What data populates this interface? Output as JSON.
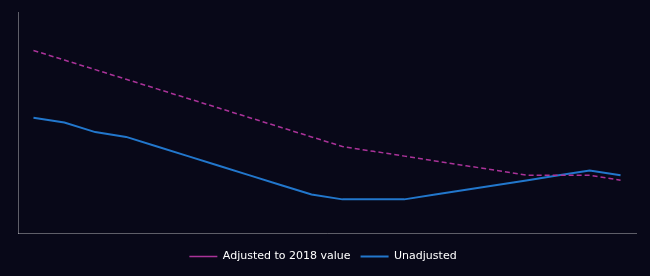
{
  "chart_data": {
    "type": "line",
    "x": [
      0,
      1,
      2,
      3,
      4,
      5,
      6,
      7,
      8,
      9,
      10,
      11,
      12,
      13,
      14,
      15,
      16,
      17,
      18,
      19
    ],
    "series": [
      {
        "name": "Adjusted to 2018 value",
        "color": "#aa3399",
        "line_style": "dashed",
        "values": [
          88,
          86,
          84,
          82,
          80,
          78,
          76,
          74,
          72,
          70,
          68,
          67,
          66,
          65,
          64,
          63,
          62,
          62,
          62,
          61
        ]
      },
      {
        "name": "Unadjusted",
        "color": "#2277cc",
        "line_style": "solid",
        "values": [
          74,
          73,
          71,
          70,
          68,
          66,
          64,
          62,
          60,
          58,
          57,
          57,
          57,
          58,
          59,
          60,
          61,
          62,
          63,
          62
        ]
      }
    ],
    "xlim": [
      -0.5,
      19.5
    ],
    "ylim": [
      50,
      96
    ],
    "tick_labels": false,
    "grid": false,
    "legend": "bottom"
  }
}
